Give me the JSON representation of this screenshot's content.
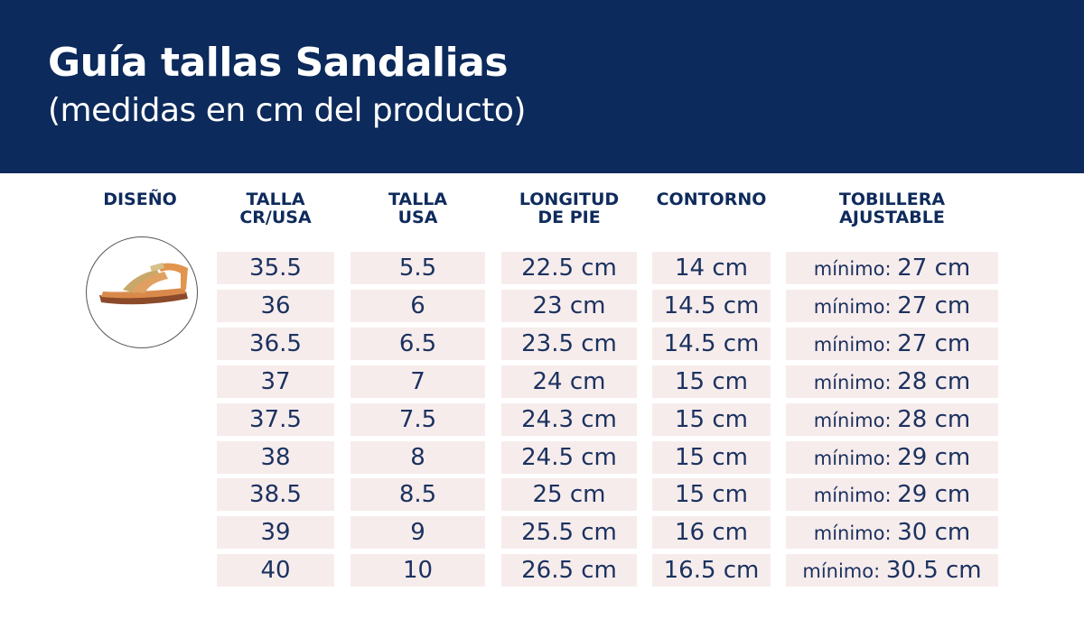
{
  "header": {
    "title": "Guía tallas Sandalias",
    "subtitle": "(medidas en cm del producto)"
  },
  "columns": [
    "DISEÑO",
    "TALLA\nCR/USA",
    "TALLA\nUSA",
    "LONGITUD\nDE PIE",
    "CONTORNO",
    "TOBILLERA\nAJUSTABLE"
  ],
  "design_image": "sandal-photo",
  "min_label": "mínimo:",
  "rows": [
    [
      "35.5",
      "5.5",
      "22.5 cm",
      "14 cm",
      "27 cm"
    ],
    [
      "36",
      "6",
      "23 cm",
      "14.5 cm",
      "27 cm"
    ],
    [
      "36.5",
      "6.5",
      "23.5 cm",
      "14.5 cm",
      "27 cm"
    ],
    [
      "37",
      "7",
      "24 cm",
      "15 cm",
      "28 cm"
    ],
    [
      "37.5",
      "7.5",
      "24.3 cm",
      "15 cm",
      "28 cm"
    ],
    [
      "38",
      "8",
      "24.5 cm",
      "15 cm",
      "29 cm"
    ],
    [
      "38.5",
      "8.5",
      "25 cm",
      "15 cm",
      "29 cm"
    ],
    [
      "39",
      "9",
      "25.5 cm",
      "16 cm",
      "30 cm"
    ],
    [
      "40",
      "10",
      "26.5 cm",
      "16.5 cm",
      "30.5 cm"
    ]
  ]
}
